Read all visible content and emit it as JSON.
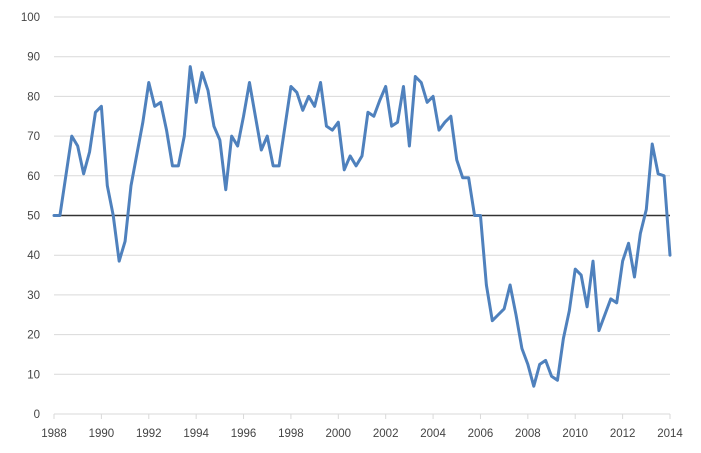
{
  "chart_data": {
    "type": "line",
    "title": "",
    "xlabel": "",
    "ylabel": "",
    "xlim": [
      1988,
      2014
    ],
    "ylim": [
      0,
      100
    ],
    "x_ticks": [
      "1988",
      "1990",
      "1992",
      "1994",
      "1996",
      "1998",
      "2000",
      "2002",
      "2004",
      "2006",
      "2008",
      "2010",
      "2012",
      "2014"
    ],
    "y_ticks": [
      "0",
      "10",
      "20",
      "30",
      "40",
      "50",
      "60",
      "70",
      "80",
      "90",
      "100"
    ],
    "grid": "horizontal",
    "legend": "none",
    "reference_line": {
      "y": 50,
      "color": "#333333"
    },
    "series": [
      {
        "color": "#4f81bd",
        "points": [
          [
            1988.0,
            50
          ],
          [
            1988.25,
            50
          ],
          [
            1988.5,
            60
          ],
          [
            1988.75,
            70
          ],
          [
            1989.0,
            67.5
          ],
          [
            1989.25,
            60.5
          ],
          [
            1989.5,
            66
          ],
          [
            1989.75,
            76
          ],
          [
            1990.0,
            77.5
          ],
          [
            1990.25,
            57.5
          ],
          [
            1990.5,
            50
          ],
          [
            1990.75,
            38.5
          ],
          [
            1991.0,
            43.5
          ],
          [
            1991.25,
            57.5
          ],
          [
            1991.5,
            65.5
          ],
          [
            1991.75,
            73.5
          ],
          [
            1992.0,
            83.5
          ],
          [
            1992.25,
            77.5
          ],
          [
            1992.5,
            78.5
          ],
          [
            1992.75,
            71.5
          ],
          [
            1993.0,
            62.5
          ],
          [
            1993.25,
            62.5
          ],
          [
            1993.5,
            70
          ],
          [
            1993.75,
            87.5
          ],
          [
            1994.0,
            78.5
          ],
          [
            1994.25,
            86
          ],
          [
            1994.5,
            81.5
          ],
          [
            1994.75,
            72.5
          ],
          [
            1995.0,
            69
          ],
          [
            1995.25,
            56.5
          ],
          [
            1995.5,
            70
          ],
          [
            1995.75,
            67.5
          ],
          [
            1996.0,
            75
          ],
          [
            1996.25,
            83.5
          ],
          [
            1996.5,
            75
          ],
          [
            1996.75,
            66.5
          ],
          [
            1997.0,
            70
          ],
          [
            1997.25,
            62.5
          ],
          [
            1997.5,
            62.5
          ],
          [
            1997.75,
            72.5
          ],
          [
            1998.0,
            82.5
          ],
          [
            1998.25,
            81
          ],
          [
            1998.5,
            76.5
          ],
          [
            1998.75,
            80
          ],
          [
            1999.0,
            77.5
          ],
          [
            1999.25,
            83.5
          ],
          [
            1999.5,
            72.5
          ],
          [
            1999.75,
            71.5
          ],
          [
            2000.0,
            73.5
          ],
          [
            2000.25,
            61.5
          ],
          [
            2000.5,
            65
          ],
          [
            2000.75,
            62.5
          ],
          [
            2001.0,
            65
          ],
          [
            2001.25,
            76
          ],
          [
            2001.5,
            75
          ],
          [
            2001.75,
            79
          ],
          [
            2002.0,
            82.5
          ],
          [
            2002.25,
            72.5
          ],
          [
            2002.5,
            73.5
          ],
          [
            2002.75,
            82.5
          ],
          [
            2003.0,
            67.5
          ],
          [
            2003.25,
            85
          ],
          [
            2003.5,
            83.5
          ],
          [
            2003.75,
            78.5
          ],
          [
            2004.0,
            80
          ],
          [
            2004.25,
            71.5
          ],
          [
            2004.5,
            73.5
          ],
          [
            2004.75,
            75
          ],
          [
            2005.0,
            64
          ],
          [
            2005.25,
            59.5
          ],
          [
            2005.5,
            59.5
          ],
          [
            2005.75,
            50
          ],
          [
            2006.0,
            50
          ],
          [
            2006.25,
            32.5
          ],
          [
            2006.5,
            23.5
          ],
          [
            2006.75,
            25
          ],
          [
            2007.0,
            26.5
          ],
          [
            2007.25,
            32.5
          ],
          [
            2007.5,
            25
          ],
          [
            2007.75,
            16.5
          ],
          [
            2008.0,
            12.5
          ],
          [
            2008.25,
            7
          ],
          [
            2008.5,
            12.5
          ],
          [
            2008.75,
            13.5
          ],
          [
            2009.0,
            9.5
          ],
          [
            2009.25,
            8.5
          ],
          [
            2009.5,
            19
          ],
          [
            2009.75,
            26
          ],
          [
            2010.0,
            36.5
          ],
          [
            2010.25,
            35
          ],
          [
            2010.5,
            27
          ],
          [
            2010.75,
            38.5
          ],
          [
            2011.0,
            21
          ],
          [
            2011.25,
            25
          ],
          [
            2011.5,
            29
          ],
          [
            2011.75,
            28
          ],
          [
            2012.0,
            38.5
          ],
          [
            2012.25,
            43
          ],
          [
            2012.5,
            34.5
          ],
          [
            2012.75,
            45.5
          ],
          [
            2013.0,
            51.5
          ],
          [
            2013.25,
            68
          ],
          [
            2013.5,
            60.5
          ],
          [
            2013.75,
            60
          ],
          [
            2014.0,
            40
          ]
        ]
      }
    ]
  }
}
